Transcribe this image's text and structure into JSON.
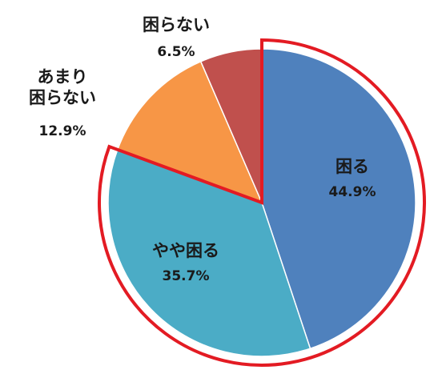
{
  "chart_data": {
    "type": "pie",
    "start": "12 o'clock",
    "direction": "clockwise",
    "slices": [
      {
        "label": "困る",
        "value": 44.9,
        "value_label": "44.9%",
        "color": "#4f81bd"
      },
      {
        "label": "やや困る",
        "value": 35.7,
        "value_label": "35.7%",
        "color": "#4bacc6"
      },
      {
        "label": "あまり 困らない",
        "value": 12.9,
        "value_label": "12.9%",
        "color": "#f79646"
      },
      {
        "label": "困らない",
        "value": 6.5,
        "value_label": "6.5%",
        "color": "#c0504d"
      }
    ],
    "highlight": {
      "slices": [
        "困る",
        "やや困る"
      ],
      "outline_color": "#e31b23"
    }
  }
}
